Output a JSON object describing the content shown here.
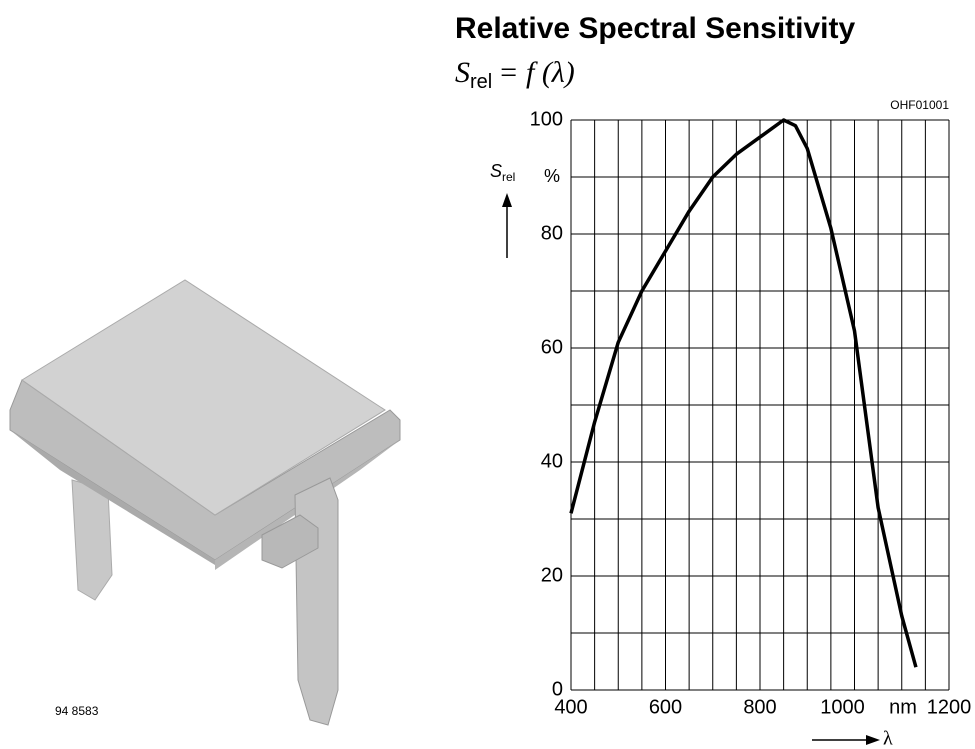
{
  "part_number": "94 8583",
  "chart_data": {
    "type": "line",
    "title": "Relative Spectral Sensitivity",
    "subtitle": {
      "symbol": "S",
      "subscript": "rel",
      "rest": "= f (λ)"
    },
    "code": "OHF01001",
    "y_label": {
      "symbol": "S",
      "subscript": "rel"
    },
    "y_unit": "%",
    "x_label": "λ",
    "x_unit": "nm",
    "x": [
      400,
      450,
      500,
      550,
      600,
      650,
      700,
      750,
      800,
      850,
      875,
      900,
      950,
      1000,
      1050,
      1100,
      1130
    ],
    "values": [
      31,
      47,
      61,
      70,
      77,
      84,
      90,
      94,
      97,
      100,
      99,
      95,
      81,
      63,
      32,
      13,
      4
    ],
    "color": "#000000",
    "xlim": [
      400,
      1200
    ],
    "ylim": [
      0,
      100
    ],
    "xticks": [
      400,
      600,
      800,
      1000,
      1200
    ],
    "yticks": [
      0,
      20,
      40,
      60,
      80,
      100
    ],
    "xgrid": [
      400,
      450,
      500,
      550,
      600,
      650,
      700,
      750,
      800,
      850,
      900,
      950,
      1000,
      1050,
      1100,
      1150,
      1200
    ],
    "ygrid": [
      0,
      10,
      20,
      30,
      40,
      50,
      60,
      70,
      80,
      90,
      100
    ],
    "grid": true
  }
}
